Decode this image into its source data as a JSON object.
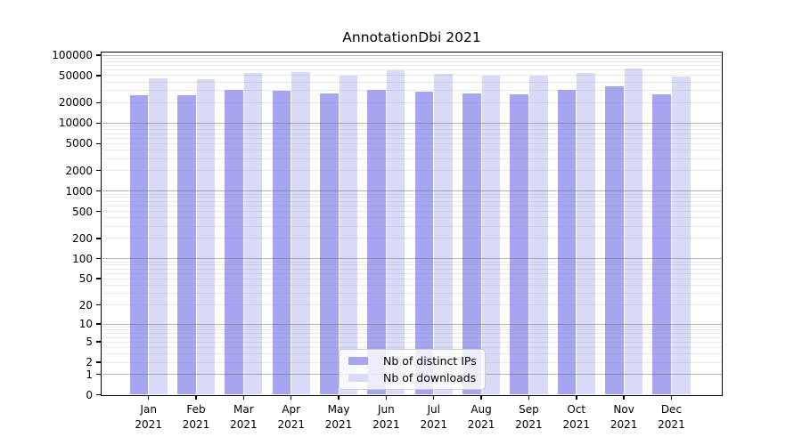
{
  "chart_data": {
    "type": "bar",
    "title": "AnnotationDbi 2021",
    "categories": [
      "Jan",
      "Feb",
      "Mar",
      "Apr",
      "May",
      "Jun",
      "Jul",
      "Aug",
      "Sep",
      "Oct",
      "Nov",
      "Dec"
    ],
    "x_year_label": "2021",
    "series": [
      {
        "name": "Nb of distinct IPs",
        "color": "#a5a5f0",
        "values": [
          26000,
          25500,
          30700,
          30000,
          27500,
          31000,
          29000,
          27000,
          26500,
          30500,
          34500,
          26700
        ]
      },
      {
        "name": "Nb of downloads",
        "color": "#d9d9f8",
        "values": [
          46000,
          44000,
          54500,
          55800,
          50400,
          60000,
          53800,
          49400,
          49500,
          54400,
          63800,
          48400
        ]
      }
    ],
    "y_scale": "log10(1+v)",
    "ylim": [
      0,
      106000
    ],
    "y_ticks": [
      0,
      1,
      2,
      5,
      10,
      20,
      50,
      100,
      200,
      500,
      1000,
      2000,
      5000,
      10000,
      20000,
      50000,
      100000
    ],
    "grid": "major and minor horizontal gridlines",
    "legend_position": "lower center"
  }
}
